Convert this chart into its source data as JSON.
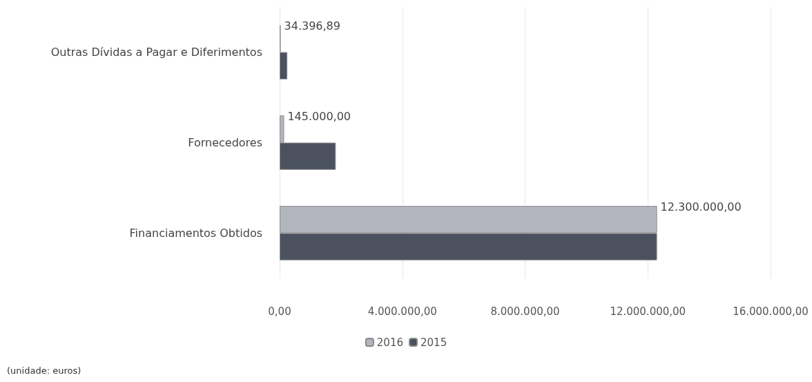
{
  "chart_data": {
    "type": "bar",
    "orientation": "horizontal",
    "categories": [
      "Outras Dívidas a Pagar e Diferimentos",
      "Fornecedores",
      "Financiamentos Obtidos"
    ],
    "series": [
      {
        "name": "2016",
        "color": "#b4b6bf",
        "values": [
          34396.89,
          145000,
          12300000
        ],
        "value_labels": [
          "34.396,89",
          "145.000,00",
          "12.300.000,00"
        ]
      },
      {
        "name": "2015",
        "color": "#4b515f",
        "values": [
          250000,
          1830000,
          12300000
        ]
      }
    ],
    "xlim": [
      0,
      16000000
    ],
    "xticks": [
      {
        "value": 0,
        "label": "0,00"
      },
      {
        "value": 4000000,
        "label": "4.000.000,00"
      },
      {
        "value": 8000000,
        "label": "8.000.000,00"
      },
      {
        "value": 12000000,
        "label": "12.000.000,00"
      },
      {
        "value": 16000000,
        "label": "16.000.000,00"
      }
    ],
    "grid": "x",
    "legend": "bottom",
    "annotations": [
      "(unidade: euros)"
    ]
  }
}
